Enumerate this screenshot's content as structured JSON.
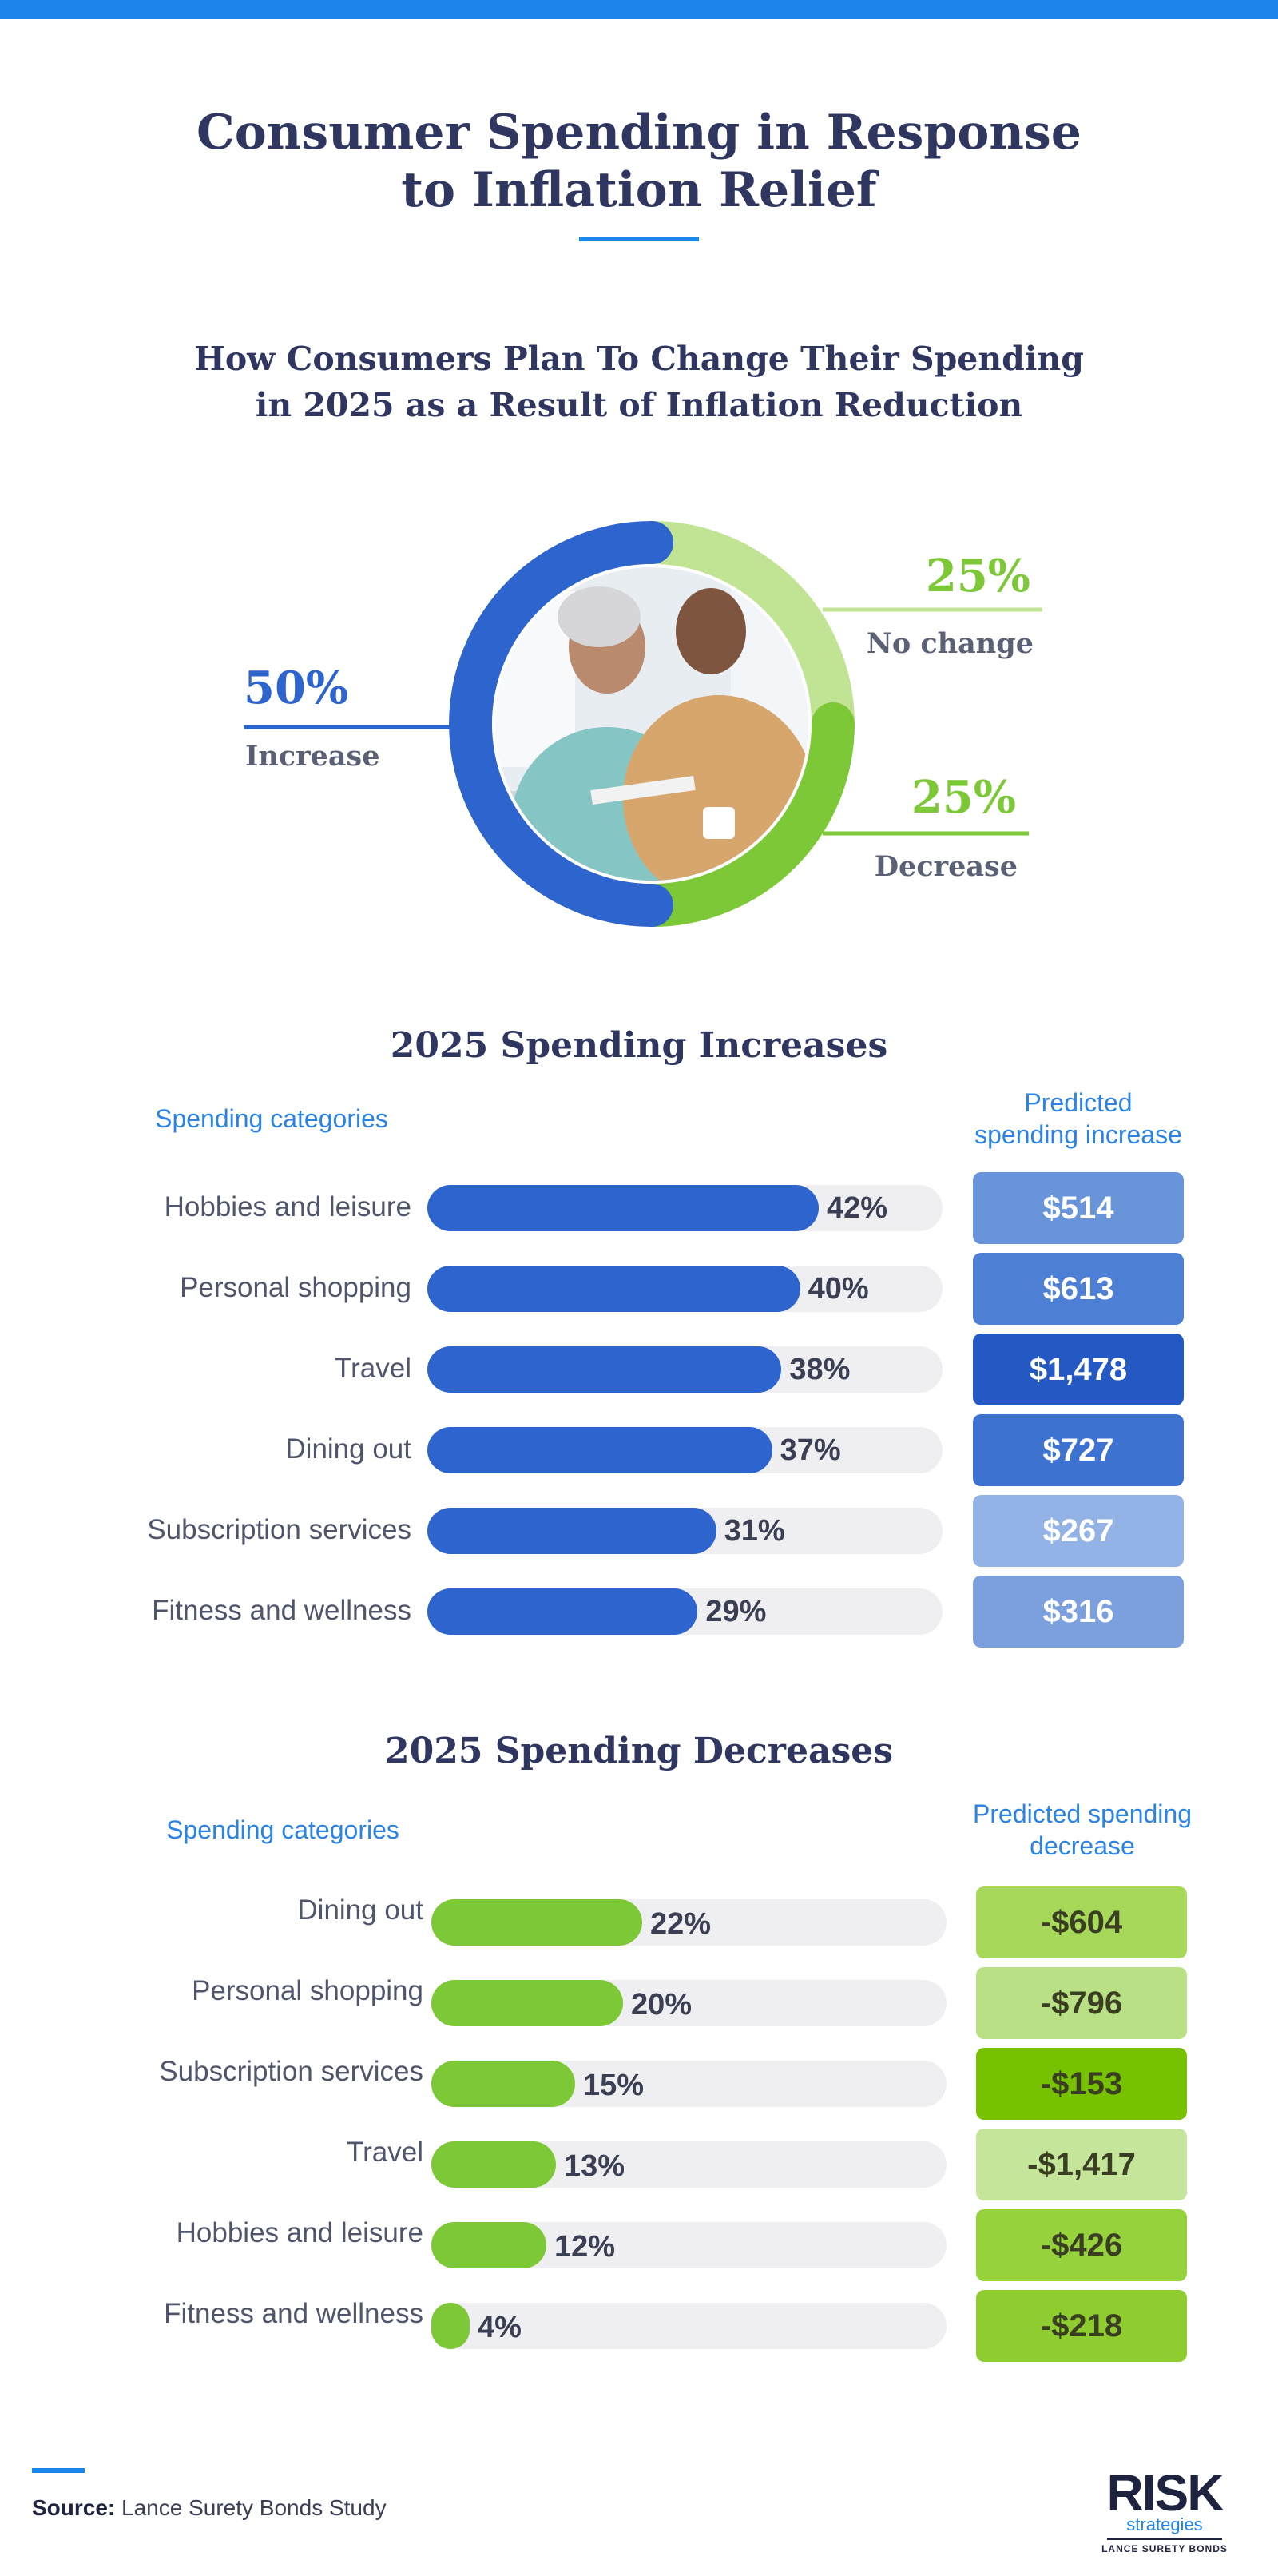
{
  "title": {
    "line1": "Consumer Spending in Response",
    "line2": "to Inflation Relief"
  },
  "colors": {
    "accent_blue": "#1b85ec",
    "increase_blue": "#2e64cd",
    "green": "#7cc837",
    "light_green": "#c1e394",
    "navy": "#2f3761"
  },
  "donut": {
    "heading_line1": "How Consumers Plan To Change Their Spending",
    "heading_line2": "in 2025 as a Result of Inflation Reduction",
    "photo_icon": "couple-reviewing-finances-photo"
  },
  "chart_data": [
    {
      "type": "pie",
      "title": "How Consumers Plan To Change Their Spending in 2025 as a Result of Inflation Reduction",
      "categories": [
        "Increase",
        "No change",
        "Decrease"
      ],
      "values": [
        50,
        25,
        25
      ],
      "labels": [
        "50%",
        "25%",
        "25%"
      ],
      "colors": [
        "#2e64cd",
        "#c1e394",
        "#7cc837"
      ]
    },
    {
      "type": "bar",
      "title": "2025 Spending Increases",
      "category_header": "Spending categories",
      "amount_header_line1": "Predicted",
      "amount_header_line2": "spending increase",
      "categories": [
        "Hobbies and leisure",
        "Personal shopping",
        "Travel",
        "Dining out",
        "Subscription services",
        "Fitness and wellness"
      ],
      "values": [
        42,
        40,
        38,
        37,
        31,
        29
      ],
      "value_labels": [
        "42%",
        "40%",
        "38%",
        "37%",
        "31%",
        "29%"
      ],
      "amounts": [
        "$514",
        "$613",
        "$1,478",
        "$727",
        "$267",
        "$316"
      ],
      "amount_colors": [
        "#6894da",
        "#4d7fd5",
        "#2458c2",
        "#3d72d0",
        "#93b3e6",
        "#7ca0de"
      ],
      "xlim": [
        0,
        60
      ]
    },
    {
      "type": "bar",
      "title": "2025 Spending Decreases",
      "category_header": "Spending categories",
      "amount_header_line1": "Predicted spending",
      "amount_header_line2": "decrease",
      "categories": [
        "Dining out",
        "Personal shopping",
        "Subscription services",
        "Travel",
        "Hobbies and leisure",
        "Fitness and wellness"
      ],
      "values": [
        22,
        20,
        15,
        13,
        12,
        4
      ],
      "value_labels": [
        "22%",
        "20%",
        "15%",
        "13%",
        "12%",
        "4%"
      ],
      "amounts": [
        "-$604",
        "-$796",
        "-$153",
        "-$1,417",
        "-$426",
        "-$218"
      ],
      "amount_colors": [
        "#a7d85a",
        "#b9e084",
        "#76c200",
        "#c5e59a",
        "#96d23c",
        "#8fcc30"
      ],
      "xlim": [
        0,
        60
      ]
    }
  ],
  "footer": {
    "source_label": "Source:",
    "source_text": "Lance Surety Bonds Study"
  },
  "logo": {
    "main": "RISK",
    "sub": "strategies",
    "foot": "LANCE SURETY BONDS"
  }
}
